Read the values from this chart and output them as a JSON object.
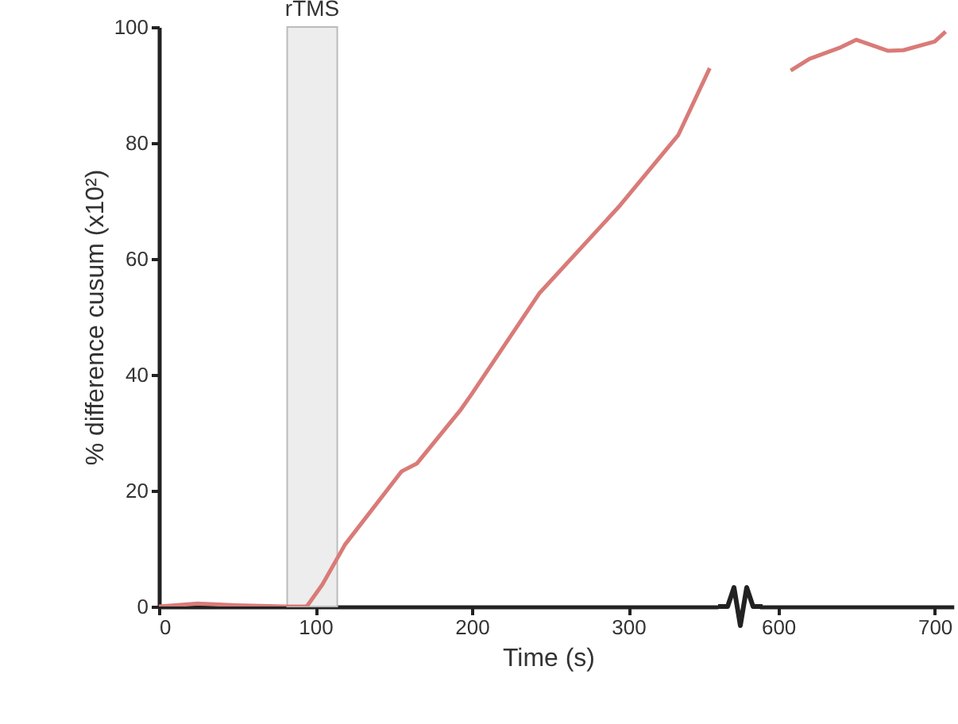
{
  "chart_data": [
    {
      "type": "line",
      "xlabel": "Time (s)",
      "ylabel": "% difference cusum (x10²)",
      "xlim": [
        0,
        357
      ],
      "xticks": [
        0,
        100,
        200,
        300
      ],
      "ylim": [
        0,
        100
      ],
      "yticks": [
        0,
        20,
        40,
        60,
        80,
        100
      ],
      "grid": false,
      "x": [
        0,
        25,
        50,
        80,
        94.5,
        104.5,
        119,
        155,
        165,
        193,
        200,
        243,
        294,
        332,
        352
      ],
      "series": [
        {
          "color": "#d97b78",
          "values": [
            0,
            0.5,
            0.2,
            0,
            0,
            3.8,
            10.7,
            23.3,
            24.7,
            34,
            36.7,
            54,
            69,
            81.4,
            92.9
          ]
        }
      ],
      "bands": [
        {
          "axis": "x",
          "from": 82,
          "to": 114,
          "label": "rTMS",
          "color": "#ededed"
        }
      ]
    },
    {
      "type": "line",
      "xlim": [
        588,
        712
      ],
      "xticks": [
        600,
        700
      ],
      "ylim": [
        0,
        100
      ],
      "yticks": [
        0,
        20,
        40,
        60,
        80,
        100
      ],
      "tick_labels": "x",
      "grid": false,
      "x": [
        608,
        620,
        640,
        650,
        670,
        680,
        700,
        707
      ],
      "series": [
        {
          "color": "#d97b78",
          "values": [
            92.5,
            94.5,
            96.5,
            97.8,
            95.9,
            96,
            97.5,
            99.2
          ]
        }
      ]
    }
  ]
}
